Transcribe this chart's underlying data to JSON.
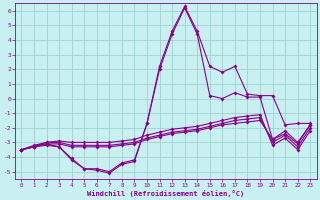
{
  "xlabel": "Windchill (Refroidissement éolien,°C)",
  "background_color": "#c8f0f0",
  "grid_color": "#a0d0d0",
  "line_color": "#880088",
  "xlim": [
    -0.5,
    23.5
  ],
  "ylim": [
    -5.5,
    6.5
  ],
  "xticks": [
    0,
    1,
    2,
    3,
    4,
    5,
    6,
    7,
    8,
    9,
    10,
    11,
    12,
    13,
    14,
    15,
    16,
    17,
    18,
    19,
    20,
    21,
    22,
    23
  ],
  "yticks": [
    -5,
    -4,
    -3,
    -2,
    -1,
    0,
    1,
    2,
    3,
    4,
    5,
    6
  ],
  "series": [
    [
      -3.5,
      -3.3,
      -3.2,
      -3.3,
      -4.2,
      -4.8,
      -4.9,
      -5.1,
      -4.5,
      -4.3,
      -1.7,
      2.2,
      4.6,
      6.3,
      4.6,
      2.2,
      1.8,
      2.2,
      0.3,
      0.2,
      0.2,
      -1.8,
      -1.7,
      -1.7
    ],
    [
      -3.5,
      -3.3,
      -3.1,
      -3.3,
      -4.1,
      -4.8,
      -4.8,
      -5.0,
      -4.4,
      -4.2,
      -1.7,
      2.0,
      4.4,
      6.2,
      4.4,
      0.2,
      0.0,
      0.4,
      0.1,
      0.1,
      -2.8,
      -2.4,
      -3.1,
      -1.8
    ],
    [
      -3.5,
      -3.3,
      -3.1,
      -3.1,
      -3.3,
      -3.3,
      -3.3,
      -3.3,
      -3.2,
      -3.1,
      -2.8,
      -2.6,
      -2.4,
      -2.3,
      -2.2,
      -2.0,
      -1.8,
      -1.7,
      -1.6,
      -1.5,
      -2.8,
      -2.2,
      -3.0,
      -1.8
    ],
    [
      -3.5,
      -3.3,
      -3.0,
      -3.0,
      -3.2,
      -3.2,
      -3.2,
      -3.2,
      -3.1,
      -3.0,
      -2.7,
      -2.5,
      -2.3,
      -2.2,
      -2.1,
      -1.9,
      -1.7,
      -1.5,
      -1.4,
      -1.3,
      -3.0,
      -2.5,
      -3.3,
      -2.0
    ],
    [
      -3.5,
      -3.2,
      -3.0,
      -2.9,
      -3.0,
      -3.0,
      -3.0,
      -3.0,
      -2.9,
      -2.8,
      -2.5,
      -2.3,
      -2.1,
      -2.0,
      -1.9,
      -1.7,
      -1.5,
      -1.3,
      -1.2,
      -1.1,
      -3.2,
      -2.7,
      -3.5,
      -2.2
    ]
  ]
}
